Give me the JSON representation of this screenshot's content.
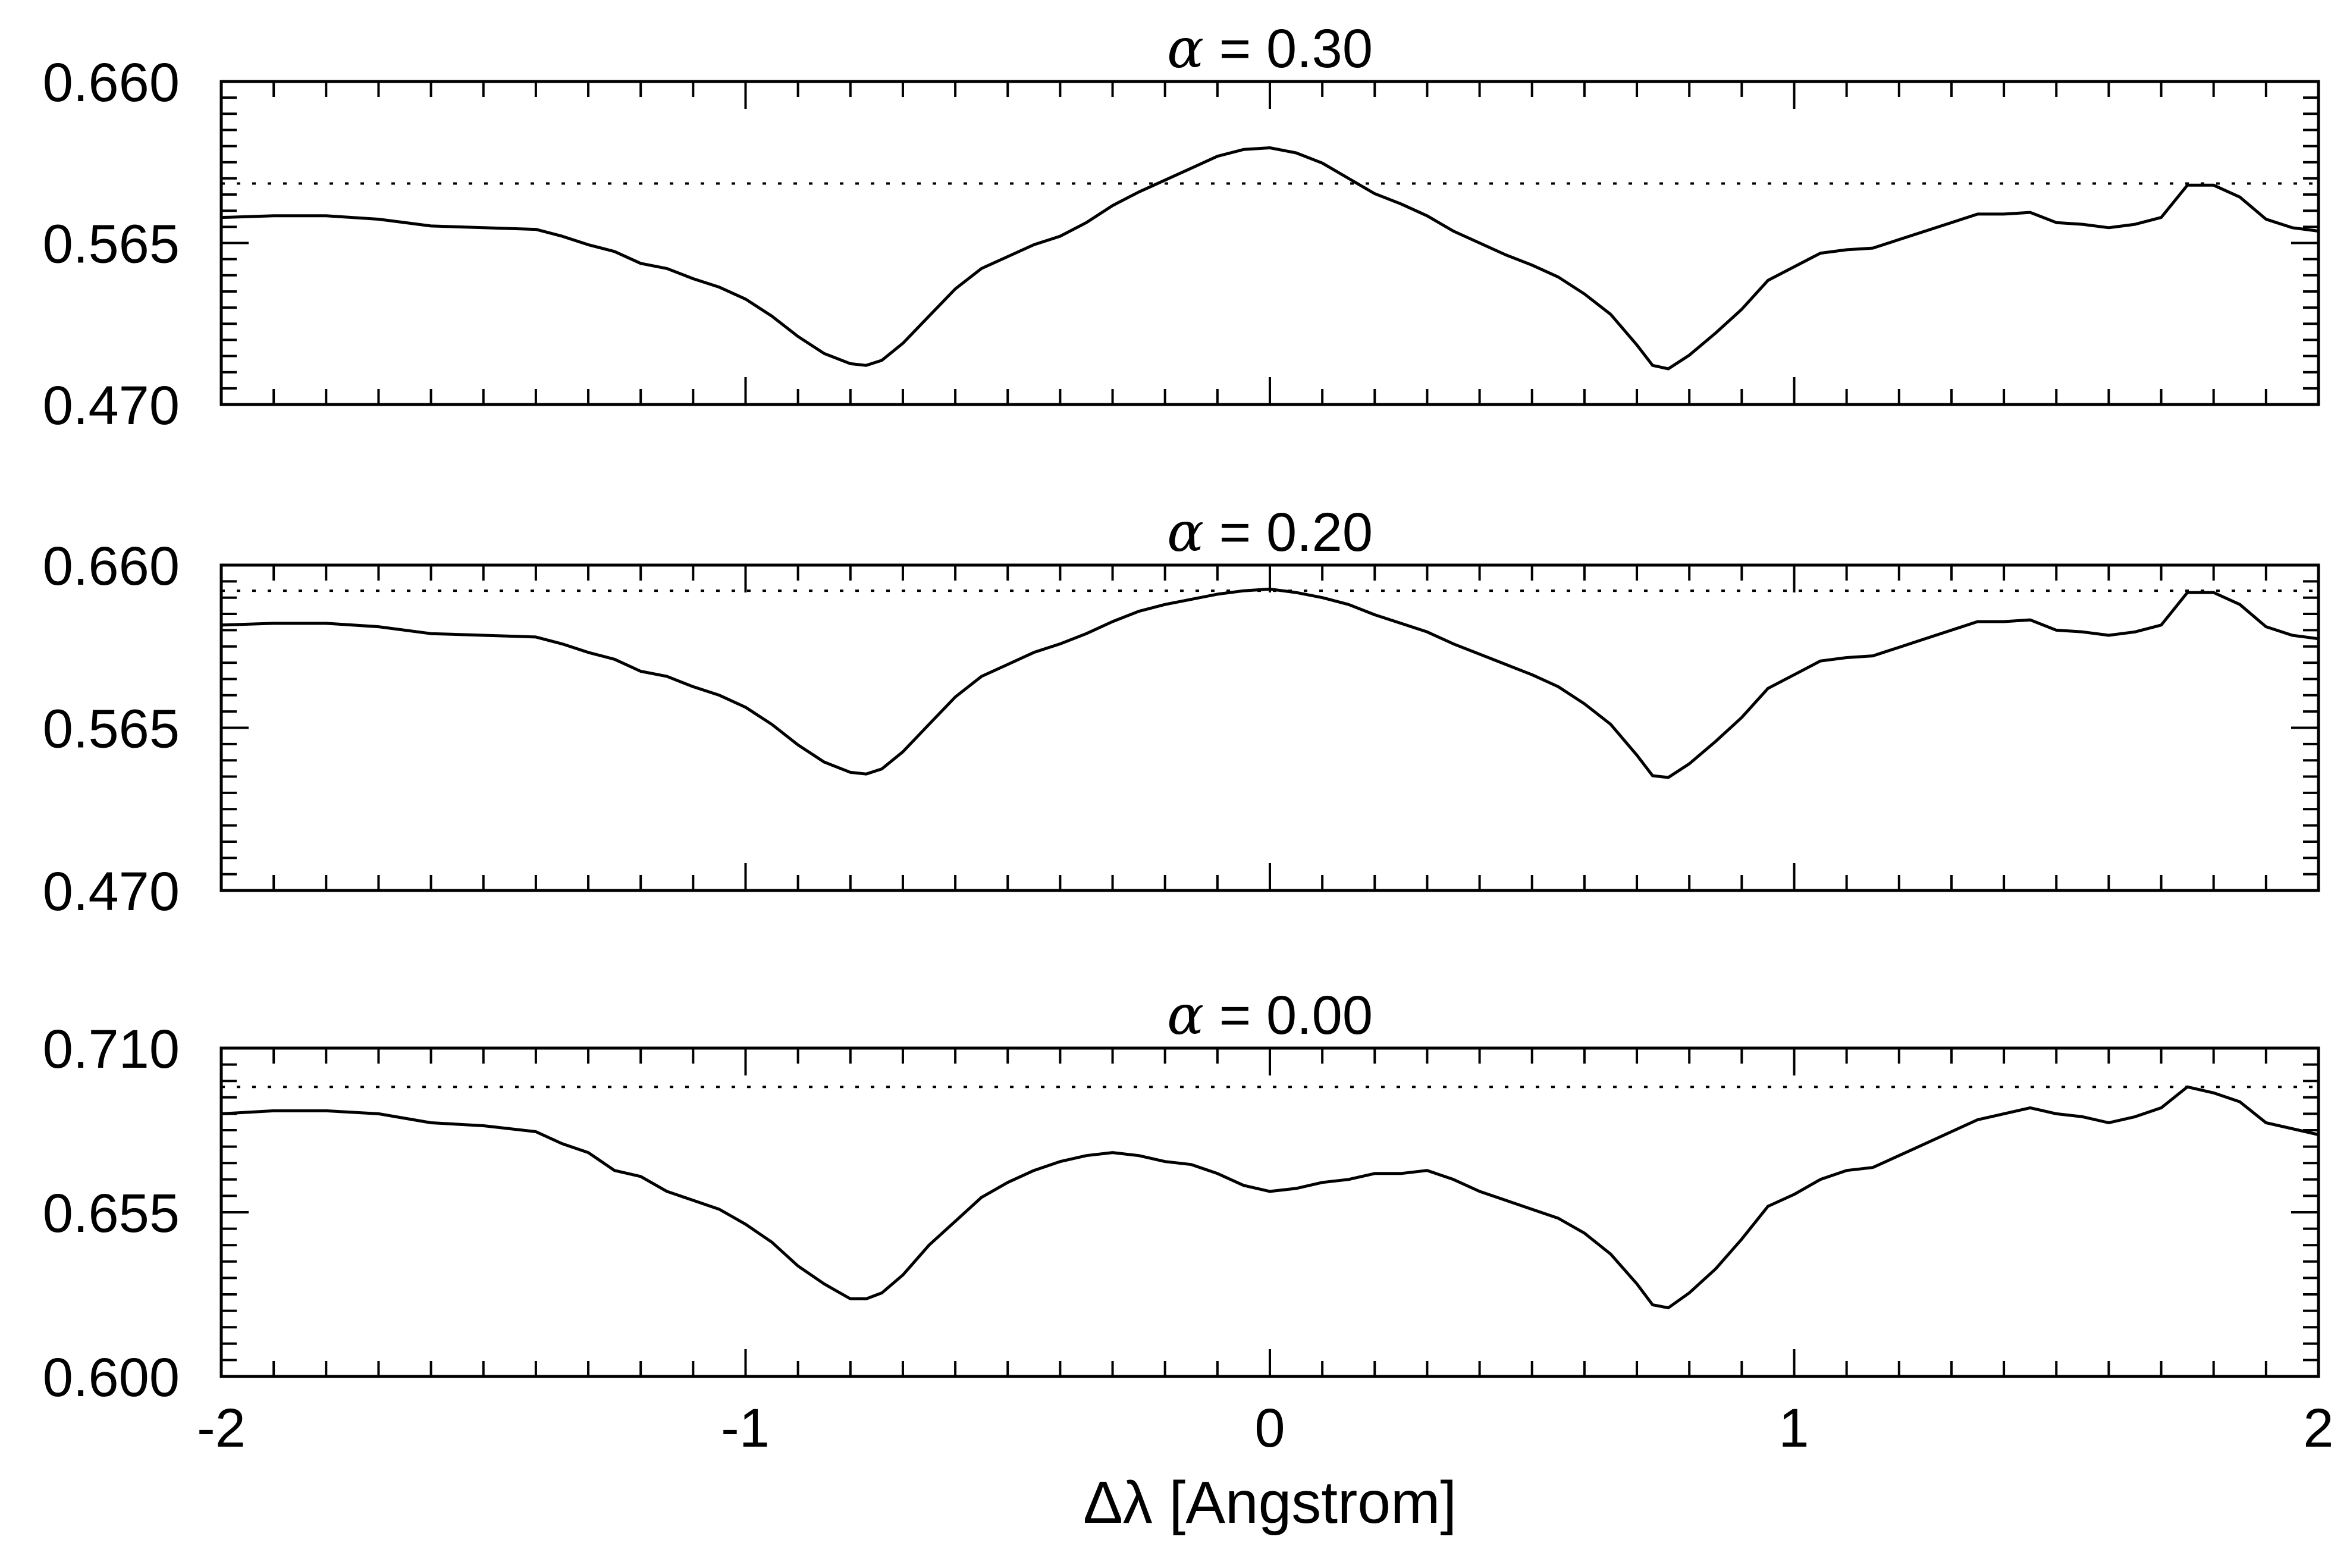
{
  "xlabel": "Δλ [Angstrom]",
  "xticks": [
    "-2",
    "-1",
    "0",
    "1",
    "2"
  ],
  "chart_data": [
    {
      "type": "line",
      "title": "α = 0.30",
      "title_prefix": "α",
      "title_rest": "= 0.30",
      "xlim": [
        -2,
        2
      ],
      "ylim": [
        0.47,
        0.66
      ],
      "yticks": [
        "0.660",
        "0.565",
        "0.470"
      ],
      "xlabel": "Δλ [Angstrom]",
      "grid": false,
      "reference_line": {
        "y": 0.6,
        "style": "dotted"
      },
      "series": [
        {
          "x": [
            -2.0,
            -1.9,
            -1.8,
            -1.7,
            -1.6,
            -1.5,
            -1.4,
            -1.35,
            -1.3,
            -1.25,
            -1.2,
            -1.15,
            -1.1,
            -1.05,
            -1.0,
            -0.95,
            -0.9,
            -0.85,
            -0.8,
            -0.77,
            -0.74,
            -0.7,
            -0.65,
            -0.6,
            -0.55,
            -0.5,
            -0.45,
            -0.4,
            -0.35,
            -0.3,
            -0.25,
            -0.2,
            -0.15,
            -0.1,
            -0.05,
            0.0,
            0.05,
            0.1,
            0.15,
            0.2,
            0.25,
            0.3,
            0.35,
            0.4,
            0.45,
            0.5,
            0.55,
            0.6,
            0.65,
            0.7,
            0.73,
            0.76,
            0.8,
            0.85,
            0.9,
            0.95,
            1.0,
            1.05,
            1.1,
            1.15,
            1.2,
            1.25,
            1.3,
            1.35,
            1.4,
            1.45,
            1.5,
            1.55,
            1.6,
            1.65,
            1.7,
            1.75,
            1.8,
            1.85,
            1.9,
            1.95,
            2.0
          ],
          "y": [
            0.58,
            0.581,
            0.581,
            0.579,
            0.575,
            0.574,
            0.573,
            0.569,
            0.564,
            0.56,
            0.553,
            0.55,
            0.544,
            0.539,
            0.532,
            0.522,
            0.51,
            0.5,
            0.494,
            0.493,
            0.496,
            0.506,
            0.522,
            0.538,
            0.55,
            0.557,
            0.564,
            0.569,
            0.577,
            0.587,
            0.595,
            0.602,
            0.609,
            0.616,
            0.62,
            0.621,
            0.618,
            0.612,
            0.603,
            0.594,
            0.588,
            0.581,
            0.572,
            0.565,
            0.558,
            0.552,
            0.545,
            0.535,
            0.523,
            0.505,
            0.493,
            0.491,
            0.499,
            0.512,
            0.526,
            0.543,
            0.551,
            0.559,
            0.561,
            0.562,
            0.567,
            0.572,
            0.577,
            0.582,
            0.582,
            0.583,
            0.577,
            0.576,
            0.574,
            0.576,
            0.58,
            0.599,
            0.599,
            0.592,
            0.579,
            0.574,
            0.572
          ]
        }
      ]
    },
    {
      "type": "line",
      "title": "α = 0.20",
      "title_prefix": "α",
      "title_rest": "= 0.20",
      "xlim": [
        -2,
        2
      ],
      "ylim": [
        0.47,
        0.66
      ],
      "yticks": [
        "0.660",
        "0.565",
        "0.470"
      ],
      "grid": false,
      "reference_line": {
        "y": 0.645,
        "style": "dotted"
      },
      "series": [
        {
          "x": [
            -2.0,
            -1.9,
            -1.8,
            -1.7,
            -1.6,
            -1.5,
            -1.4,
            -1.35,
            -1.3,
            -1.25,
            -1.2,
            -1.15,
            -1.1,
            -1.05,
            -1.0,
            -0.95,
            -0.9,
            -0.85,
            -0.8,
            -0.77,
            -0.74,
            -0.7,
            -0.65,
            -0.6,
            -0.55,
            -0.5,
            -0.45,
            -0.4,
            -0.35,
            -0.3,
            -0.25,
            -0.2,
            -0.15,
            -0.1,
            -0.05,
            0.0,
            0.05,
            0.1,
            0.15,
            0.2,
            0.25,
            0.3,
            0.35,
            0.4,
            0.45,
            0.5,
            0.55,
            0.6,
            0.65,
            0.7,
            0.73,
            0.76,
            0.8,
            0.85,
            0.9,
            0.95,
            1.0,
            1.05,
            1.1,
            1.15,
            1.2,
            1.25,
            1.3,
            1.35,
            1.4,
            1.45,
            1.5,
            1.55,
            1.6,
            1.65,
            1.7,
            1.75,
            1.8,
            1.85,
            1.9,
            1.95,
            2.0
          ],
          "y": [
            0.625,
            0.626,
            0.626,
            0.624,
            0.62,
            0.619,
            0.618,
            0.614,
            0.609,
            0.605,
            0.598,
            0.595,
            0.589,
            0.584,
            0.577,
            0.567,
            0.555,
            0.545,
            0.539,
            0.538,
            0.541,
            0.551,
            0.567,
            0.583,
            0.595,
            0.602,
            0.609,
            0.614,
            0.62,
            0.627,
            0.633,
            0.637,
            0.64,
            0.643,
            0.645,
            0.646,
            0.644,
            0.641,
            0.637,
            0.631,
            0.626,
            0.621,
            0.614,
            0.608,
            0.602,
            0.596,
            0.589,
            0.579,
            0.567,
            0.549,
            0.537,
            0.536,
            0.544,
            0.557,
            0.571,
            0.588,
            0.596,
            0.604,
            0.606,
            0.607,
            0.612,
            0.617,
            0.622,
            0.627,
            0.627,
            0.628,
            0.622,
            0.621,
            0.619,
            0.621,
            0.625,
            0.644,
            0.644,
            0.637,
            0.624,
            0.619,
            0.617
          ]
        }
      ]
    },
    {
      "type": "line",
      "title": "α = 0.00",
      "title_prefix": "α",
      "title_rest": "= 0.00",
      "xlim": [
        -2,
        2
      ],
      "ylim": [
        0.6,
        0.71
      ],
      "yticks": [
        "0.710",
        "0.655",
        "0.600"
      ],
      "grid": false,
      "reference_line": {
        "y": 0.697,
        "style": "dotted"
      },
      "series": [
        {
          "x": [
            -2.0,
            -1.9,
            -1.8,
            -1.7,
            -1.6,
            -1.5,
            -1.4,
            -1.35,
            -1.3,
            -1.25,
            -1.2,
            -1.15,
            -1.1,
            -1.05,
            -1.0,
            -0.95,
            -0.9,
            -0.85,
            -0.8,
            -0.77,
            -0.74,
            -0.7,
            -0.65,
            -0.6,
            -0.55,
            -0.5,
            -0.45,
            -0.4,
            -0.35,
            -0.3,
            -0.25,
            -0.2,
            -0.15,
            -0.1,
            -0.05,
            0.0,
            0.05,
            0.1,
            0.15,
            0.2,
            0.25,
            0.3,
            0.35,
            0.4,
            0.45,
            0.5,
            0.55,
            0.6,
            0.65,
            0.7,
            0.73,
            0.76,
            0.8,
            0.85,
            0.9,
            0.95,
            1.0,
            1.05,
            1.1,
            1.15,
            1.2,
            1.25,
            1.3,
            1.35,
            1.4,
            1.45,
            1.5,
            1.55,
            1.6,
            1.65,
            1.7,
            1.75,
            1.8,
            1.85,
            1.9,
            1.95,
            2.0
          ],
          "y": [
            0.688,
            0.689,
            0.689,
            0.688,
            0.685,
            0.684,
            0.682,
            0.678,
            0.675,
            0.669,
            0.667,
            0.662,
            0.659,
            0.656,
            0.651,
            0.645,
            0.637,
            0.631,
            0.626,
            0.626,
            0.628,
            0.634,
            0.644,
            0.652,
            0.66,
            0.665,
            0.669,
            0.672,
            0.674,
            0.675,
            0.674,
            0.672,
            0.671,
            0.668,
            0.664,
            0.662,
            0.663,
            0.665,
            0.666,
            0.668,
            0.668,
            0.669,
            0.666,
            0.662,
            0.659,
            0.656,
            0.653,
            0.648,
            0.641,
            0.631,
            0.624,
            0.623,
            0.628,
            0.636,
            0.646,
            0.657,
            0.661,
            0.666,
            0.669,
            0.67,
            0.674,
            0.678,
            0.682,
            0.686,
            0.688,
            0.69,
            0.688,
            0.687,
            0.685,
            0.687,
            0.69,
            0.697,
            0.695,
            0.692,
            0.685,
            0.683,
            0.681
          ]
        }
      ]
    }
  ]
}
